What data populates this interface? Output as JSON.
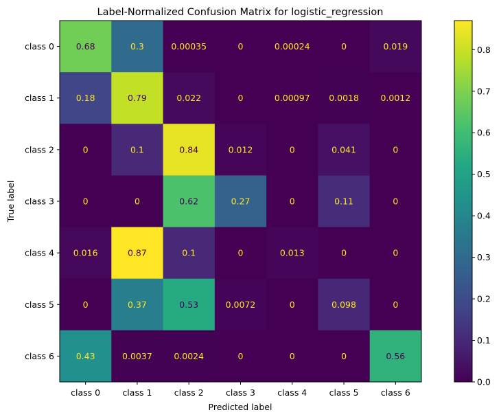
{
  "chart_data": {
    "type": "heatmap",
    "title": "Label-Normalized Confusion Matrix for logistic_regression",
    "xlabel": "Predicted label",
    "ylabel": "True label",
    "x_categories": [
      "class 0",
      "class 1",
      "class 2",
      "class 3",
      "class 4",
      "class 5",
      "class 6"
    ],
    "y_categories": [
      "class 0",
      "class 1",
      "class 2",
      "class 3",
      "class 4",
      "class 5",
      "class 6"
    ],
    "values": [
      [
        0.68,
        0.3,
        0.00035,
        0,
        0.00024,
        0,
        0.019
      ],
      [
        0.18,
        0.79,
        0.022,
        0,
        0.00097,
        0.0018,
        0.0012
      ],
      [
        0,
        0.1,
        0.84,
        0.012,
        0,
        0.041,
        0
      ],
      [
        0,
        0,
        0.62,
        0.27,
        0,
        0.11,
        0
      ],
      [
        0.016,
        0.87,
        0.1,
        0,
        0.013,
        0,
        0
      ],
      [
        0,
        0.37,
        0.53,
        0.0072,
        0,
        0.098,
        0
      ],
      [
        0.43,
        0.0037,
        0.0024,
        0,
        0,
        0,
        0.56
      ]
    ],
    "cell_labels": [
      [
        "0.68",
        "0.3",
        "0.00035",
        "0",
        "0.00024",
        "0",
        "0.019"
      ],
      [
        "0.18",
        "0.79",
        "0.022",
        "0",
        "0.00097",
        "0.0018",
        "0.0012"
      ],
      [
        "0",
        "0.1",
        "0.84",
        "0.012",
        "0",
        "0.041",
        "0"
      ],
      [
        "0",
        "0",
        "0.62",
        "0.27",
        "0",
        "0.11",
        "0"
      ],
      [
        "0.016",
        "0.87",
        "0.1",
        "0",
        "0.013",
        "0",
        "0"
      ],
      [
        "0",
        "0.37",
        "0.53",
        "0.0072",
        "0",
        "0.098",
        "0"
      ],
      [
        "0.43",
        "0.0037",
        "0.0024",
        "0",
        "0",
        "0",
        "0.56"
      ]
    ],
    "colormap": "viridis",
    "vmin": 0,
    "vmax": 0.87,
    "colorbar_ticks": [
      0.0,
      0.1,
      0.2,
      0.3,
      0.4,
      0.5,
      0.6,
      0.7,
      0.8
    ],
    "colorbar_tick_labels": [
      "0.0",
      "0.1",
      "0.2",
      "0.3",
      "0.4",
      "0.5",
      "0.6",
      "0.7",
      "0.8"
    ],
    "text_color_light": "#fde725",
    "text_color_dark": "#440154",
    "grid": false
  }
}
